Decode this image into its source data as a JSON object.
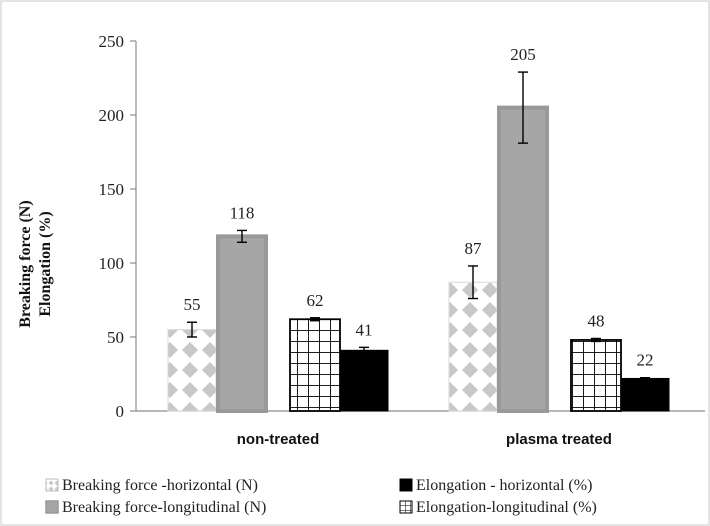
{
  "chart_data": {
    "type": "bar",
    "title": "",
    "ylabel_lines": [
      "Breaking force (N)",
      "Elongation (%)"
    ],
    "xlabel": "",
    "ylim": [
      0,
      250
    ],
    "yticks": [
      0,
      50,
      100,
      150,
      200,
      250
    ],
    "grid": false,
    "legend_position": "bottom",
    "categories": [
      "non-treated",
      "plasma treated"
    ],
    "series": [
      {
        "name": "Breaking force -horizontal (N)",
        "values": [
          55,
          87
        ],
        "errors": [
          5,
          11
        ],
        "labels": [
          "55",
          "87"
        ],
        "fill": "diamond",
        "color": "#c8c8c8"
      },
      {
        "name": "Breaking force-longitudinal (N)",
        "values": [
          118,
          205
        ],
        "errors": [
          4,
          24
        ],
        "labels": [
          "118",
          "205"
        ],
        "fill": "solid",
        "color": "#a6a6a6"
      },
      {
        "name": "Elongation-longitudinal (%)",
        "values": [
          62,
          48
        ],
        "errors": [
          1,
          1
        ],
        "labels": [
          "62",
          "48"
        ],
        "fill": "grid",
        "color": "#000000"
      },
      {
        "name": "Elongation - horizontal (%)",
        "values": [
          41,
          22
        ],
        "errors": [
          2,
          0.5
        ],
        "labels": [
          "41",
          "22"
        ],
        "fill": "black",
        "color": "#000000"
      }
    ],
    "legend_order": [
      0,
      3,
      1,
      2
    ]
  }
}
